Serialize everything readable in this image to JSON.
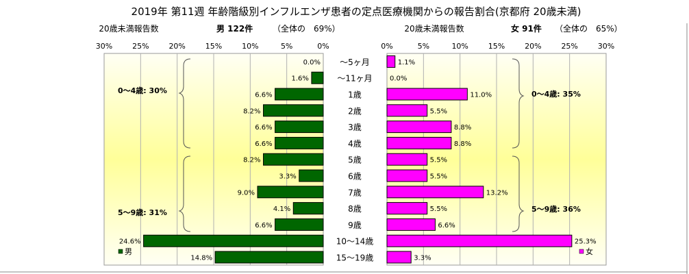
{
  "title": "2019年 第11週 年齢階級別インフルエンザ患者の定点医療機関からの報告割合(京都府 20歳未満)",
  "male": {
    "header_left": "20歳未満報告数",
    "header_count": "男 122件",
    "header_share": "（全体の　69%）",
    "legend": "男",
    "color": "#006600",
    "group_labels": [
      "0～4歳: 30%",
      "5～9歳: 31%"
    ]
  },
  "female": {
    "header_left": "20歳未満報告数",
    "header_count": "女 91件",
    "header_share": "（全体の　65%）",
    "legend": "女",
    "color": "#FF00FF",
    "group_labels": [
      "0～4歳: 35%",
      "5～9歳: 36%"
    ]
  },
  "colors": {
    "background_gradient_edge": "#FFFFF0",
    "background_gradient_center": "#FFFF99"
  },
  "chart_data": {
    "type": "bar",
    "orientation": "horizontal-butterfly",
    "title": "2019年 第11週 年齢階級別インフルエンザ患者の定点医療機関からの報告割合(京都府 20歳未満)",
    "categories": [
      "～5ヶ月",
      "～11ヶ月",
      "1歳",
      "2歳",
      "3歳",
      "4歳",
      "5歳",
      "6歳",
      "7歳",
      "8歳",
      "9歳",
      "10～14歳",
      "15～19歳"
    ],
    "series": [
      {
        "name": "男",
        "values": [
          0.0,
          1.6,
          6.6,
          8.2,
          6.6,
          6.6,
          8.2,
          3.3,
          9.0,
          4.1,
          6.6,
          24.6,
          14.8
        ],
        "labels": [
          "0.0%",
          "1.6%",
          "6.6%",
          "8.2%",
          "6.6%",
          "6.6%",
          "8.2%",
          "3.3%",
          "9.0%",
          "4.1%",
          "6.6%",
          "24.6%",
          "14.8%"
        ]
      },
      {
        "name": "女",
        "values": [
          1.1,
          0.0,
          11.0,
          5.5,
          8.8,
          8.8,
          5.5,
          5.5,
          13.2,
          5.5,
          6.6,
          25.3,
          3.3
        ],
        "labels": [
          "1.1%",
          "0.0%",
          "11.0%",
          "5.5%",
          "8.8%",
          "8.8%",
          "5.5%",
          "5.5%",
          "13.2%",
          "5.5%",
          "6.6%",
          "25.3%",
          "3.3%"
        ]
      }
    ],
    "xlim": [
      0,
      30
    ],
    "tick_labels": [
      "0%",
      "5%",
      "10%",
      "15%",
      "20%",
      "25%",
      "30%"
    ],
    "grid": true,
    "legend": "bottom-corners"
  }
}
